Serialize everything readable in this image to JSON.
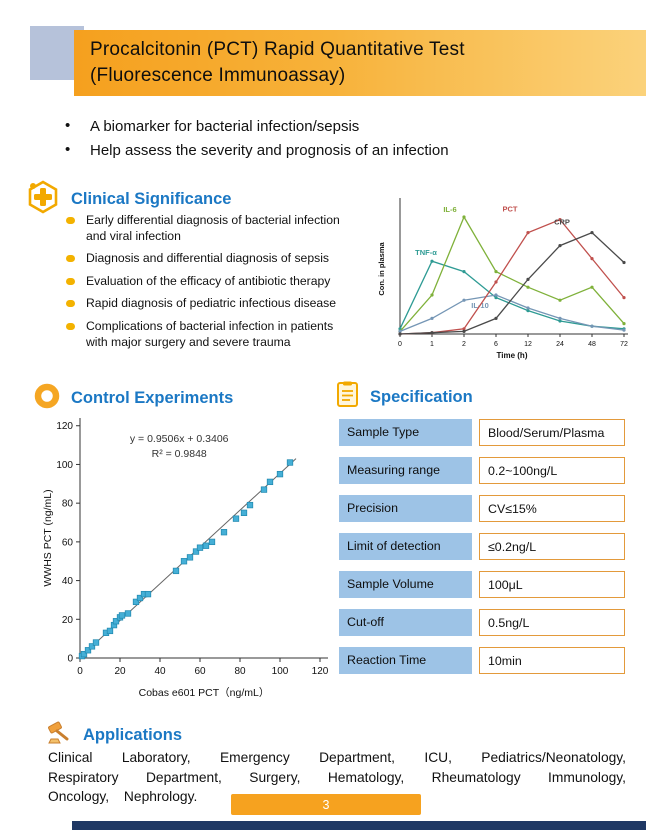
{
  "page": {
    "number": "3"
  },
  "header": {
    "title_line1": "Procalcitonin (PCT) Rapid Quantitative Test",
    "title_line2": "(Fluorescence Immunoassay)"
  },
  "intro": {
    "bullets": [
      "A biomarker for bacterial infection/sepsis",
      "Help assess the severity and prognosis of an infection"
    ]
  },
  "clinical": {
    "heading": "Clinical Significance",
    "bullets": [
      "Early differential diagnosis of bacterial infection and viral infection",
      "Diagnosis and differential diagnosis of sepsis",
      "Evaluation of the efficacy of antibiotic therapy",
      "Rapid diagnosis of pediatric infectious disease",
      "Complications of bacterial infection in patients with major surgery and severe trauma"
    ]
  },
  "control": {
    "heading": "Control Experiments"
  },
  "specification": {
    "heading": "Specification",
    "rows": [
      {
        "label": "Sample  Type",
        "value": "Blood/Serum/Plasma"
      },
      {
        "label": "Measuring range",
        "value": "0.2~100ng/L"
      },
      {
        "label": "Precision",
        "value": "CV≤15%"
      },
      {
        "label": "Limit of detection",
        "value": "≤0.2ng/L"
      },
      {
        "label": "Sample  Volume",
        "value": "100μL"
      },
      {
        "label": "Cut-off",
        "value": "0.5ng/L"
      },
      {
        "label": "Reaction Time",
        "value": "10min"
      }
    ]
  },
  "applications": {
    "heading": "Applications",
    "text": "Clinical Laboratory, Emergency Department, ICU, Pediatrics/Neonatology, Respiratory Department, Surgery, Hematology, Rheumatology Immunology, Oncology, Nephrology."
  },
  "chart_data": [
    {
      "type": "line",
      "title": "Biomarker concentration kinetics in plasma",
      "xlabel": "Time (h)",
      "ylabel": "Con. in plasma",
      "categories": [
        "0",
        "1",
        "2",
        "6",
        "12",
        "24",
        "48",
        "72"
      ],
      "ylim": [
        0,
        100
      ],
      "grid": false,
      "legend_position": "on-curve",
      "series": [
        {
          "name": "TNF-α",
          "color": "#2E9B94",
          "values": [
            4,
            56,
            48,
            28,
            18,
            10,
            6,
            4
          ],
          "label_offset": [
            -6,
            -6
          ]
        },
        {
          "name": "IL-6",
          "color": "#7FB13A",
          "values": [
            2,
            30,
            90,
            48,
            36,
            26,
            36,
            8
          ],
          "label_offset": [
            -14,
            -5
          ]
        },
        {
          "name": "IL-10",
          "color": "#7596B5",
          "values": [
            2,
            12,
            26,
            30,
            20,
            12,
            6,
            3
          ],
          "label_offset": [
            -16,
            13
          ]
        },
        {
          "name": "PCT",
          "color": "#C0504D",
          "values": [
            0,
            1,
            4,
            40,
            78,
            88,
            58,
            28
          ],
          "label_offset": [
            -50,
            -8
          ]
        },
        {
          "name": "CRP",
          "color": "#4A4A4A",
          "values": [
            0,
            1,
            2,
            12,
            42,
            68,
            78,
            55
          ],
          "label_offset": [
            -30,
            -8
          ]
        }
      ]
    },
    {
      "type": "scatter",
      "xlabel": "Cobas e601 PCT（ng/mL）",
      "ylabel": "WWHS PCT (ng/mL)",
      "xlim": [
        0,
        124
      ],
      "ylim": [
        0,
        124
      ],
      "xticks": [
        0,
        20,
        40,
        60,
        80,
        100,
        120
      ],
      "yticks": [
        0,
        20,
        40,
        60,
        80,
        100,
        120
      ],
      "points": [
        [
          1,
          1
        ],
        [
          2,
          2
        ],
        [
          4,
          4
        ],
        [
          6,
          6
        ],
        [
          8,
          8
        ],
        [
          13,
          13
        ],
        [
          15,
          14
        ],
        [
          17,
          17
        ],
        [
          18,
          19
        ],
        [
          20,
          21
        ],
        [
          21,
          22
        ],
        [
          24,
          23
        ],
        [
          28,
          29
        ],
        [
          30,
          31
        ],
        [
          32,
          33
        ],
        [
          34,
          33
        ],
        [
          48,
          45
        ],
        [
          52,
          50
        ],
        [
          55,
          52
        ],
        [
          58,
          55
        ],
        [
          60,
          57
        ],
        [
          63,
          58
        ],
        [
          66,
          60
        ],
        [
          72,
          65
        ],
        [
          78,
          72
        ],
        [
          82,
          75
        ],
        [
          85,
          79
        ],
        [
          92,
          87
        ],
        [
          95,
          91
        ],
        [
          100,
          95
        ],
        [
          105,
          101
        ]
      ],
      "fit_line": {
        "slope": 0.9506,
        "intercept": 0.3406,
        "x_range": [
          0,
          108
        ]
      },
      "annotation": [
        "y = 0.9506x + 0.3406",
        "R² = 0.9848"
      ],
      "marker": {
        "shape": "square",
        "color": "#45AFD6",
        "edge": "#1F88AF"
      }
    }
  ],
  "colors": {
    "accent_orange": "#F5A01E",
    "heading_blue": "#1B78C4",
    "table_label_bg": "#9DC3E6",
    "table_value_border": "#E39A3B",
    "footer_navy": "#1F3864",
    "corner_square": "#B6C2DA",
    "bullet_yellow": "#F3B200"
  }
}
